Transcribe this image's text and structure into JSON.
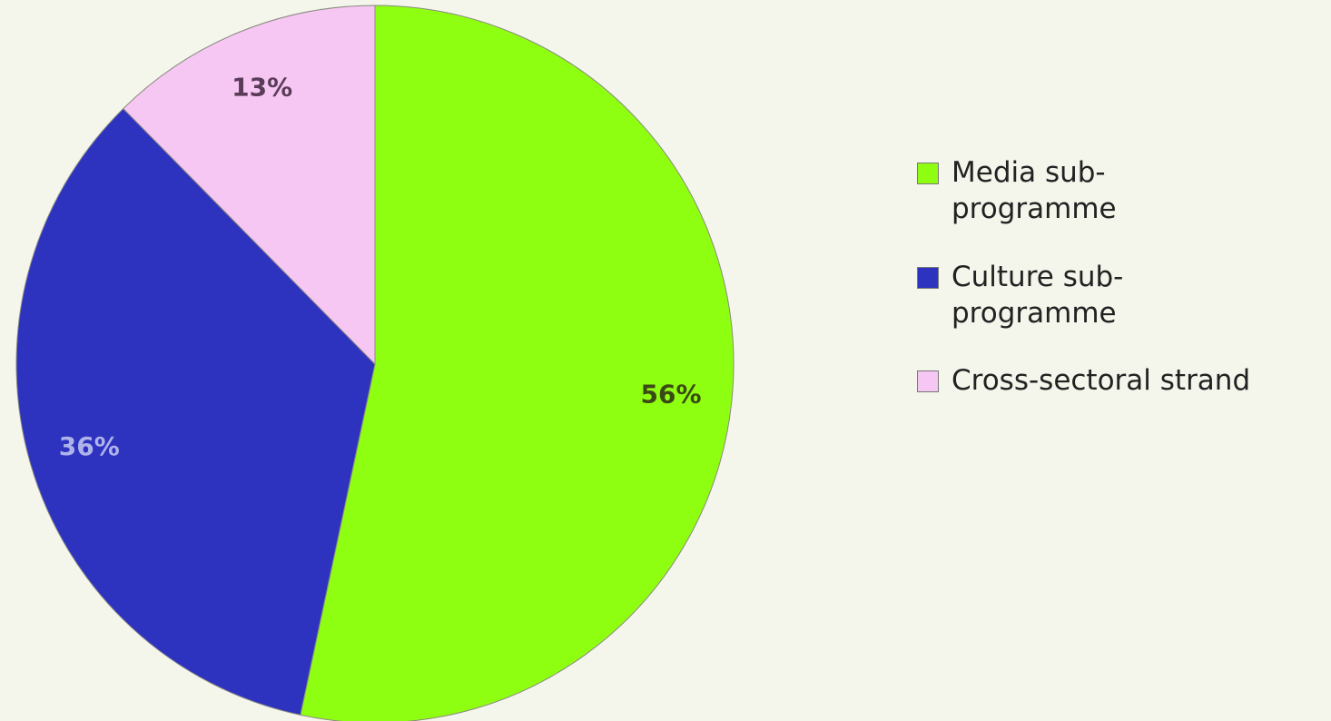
{
  "chart_data": {
    "type": "pie",
    "start_angle_deg": 0,
    "direction": "clockwise",
    "slices": [
      {
        "label": "Media sub-programme",
        "value": 56,
        "display": "56%",
        "color": "#8fff12",
        "label_color": "#3b4a12"
      },
      {
        "label": "Culture sub-programme",
        "value": 36,
        "display": "36%",
        "color": "#2e33bf",
        "label_color": "#aeb3ea"
      },
      {
        "label": "Cross-sectoral strand",
        "value": 13,
        "display": "13%",
        "color": "#f7c7f4",
        "label_color": "#5a3c58"
      }
    ],
    "legend_position": "right"
  },
  "legend": {
    "items": [
      {
        "label": "Media sub-programme",
        "color": "#8fff12"
      },
      {
        "label": "Culture sub-programme",
        "color": "#2e33bf"
      },
      {
        "label": "Cross-sectoral strand",
        "color": "#f7c7f4"
      }
    ]
  }
}
